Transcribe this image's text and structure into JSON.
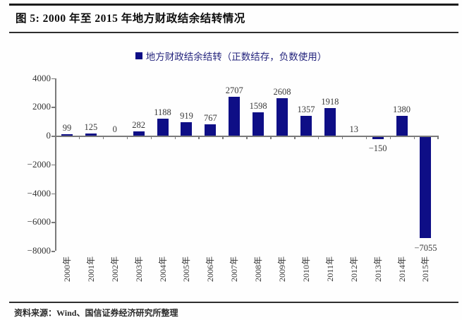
{
  "figure": {
    "title": "图 5: 2000 年至 2015 年地方财政结余结转情况",
    "source": "资料来源：Wind、国信证券经济研究所整理"
  },
  "colors": {
    "bar": "#0e0e86",
    "legend_text": "#26267e",
    "axis": "#7a7a7a",
    "value_label": "#3a3a3a",
    "tick_label": "#333333"
  },
  "chart_data": {
    "type": "bar",
    "legend": "地方财政结余结转（正数结存，负数使用）",
    "categories": [
      "2000年",
      "2001年",
      "2002年",
      "2003年",
      "2004年",
      "2005年",
      "2006年",
      "2007年",
      "2008年",
      "2009年",
      "2010年",
      "2011年",
      "2012年",
      "2013年",
      "2014年",
      "2015年"
    ],
    "values": [
      99,
      125,
      0,
      282,
      1188,
      919,
      767,
      2707,
      1598,
      2608,
      1357,
      1918,
      13,
      -150,
      1380,
      -7055
    ],
    "title": "图 5: 2000 年至 2015 年地方财政结余结转情况",
    "xlabel": "",
    "ylabel": "",
    "ylim": [
      -8000,
      4000
    ],
    "yticks": [
      4000,
      2000,
      0,
      -2000,
      -4000,
      -6000,
      -8000
    ],
    "grid": false,
    "legend_position": "top-center",
    "data_labels": true
  }
}
